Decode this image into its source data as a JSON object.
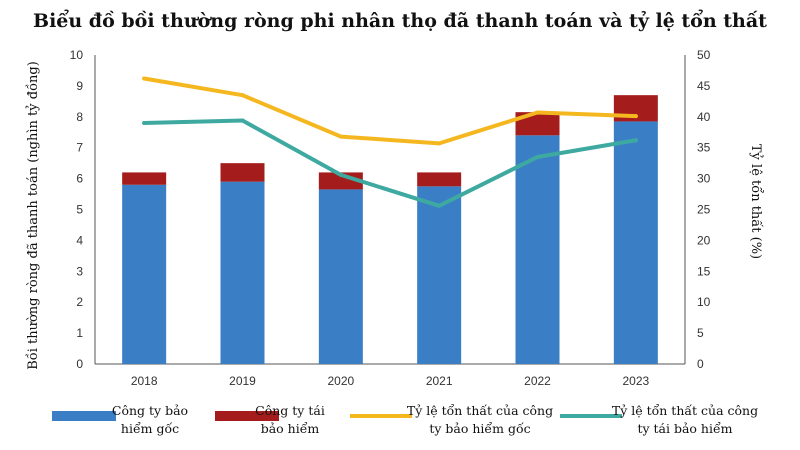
{
  "chart_data": {
    "type": "bar",
    "title": "Biểu đồ bồi thường ròng phi nhân thọ đã thanh toán và tỷ lệ tổn thất",
    "ylabel": "Bồi thường ròng đã thanh toán (nghìn tỷ đồng)",
    "y2label": "Tỷ lệ tổn thất (%)",
    "categories": [
      "2018",
      "2019",
      "2020",
      "2021",
      "2022",
      "2023"
    ],
    "ylim": [
      0,
      10
    ],
    "y2lim": [
      0,
      50
    ],
    "yticks": [
      "0",
      "1",
      "2",
      "3",
      "4",
      "5",
      "6",
      "7",
      "8",
      "9",
      "10"
    ],
    "y2ticks": [
      "0",
      "5",
      "10",
      "15",
      "20",
      "25",
      "30",
      "35",
      "40",
      "45",
      "50"
    ],
    "grid": false,
    "legend_position": "bottom",
    "bar_series": [
      {
        "name": "Công ty bảo hiểm gốc",
        "color": "#3a7ec6",
        "values": [
          5.8,
          5.9,
          5.65,
          5.75,
          7.4,
          7.85
        ]
      },
      {
        "name": "Công ty tái bảo hiểm",
        "color": "#a51c1c",
        "values": [
          0.4,
          0.6,
          0.55,
          0.45,
          0.75,
          0.85
        ]
      }
    ],
    "line_series": [
      {
        "name": "Tỷ lệ tổn thất của công ty bảo hiểm gốc",
        "color": "#f5b71f",
        "axis": "right",
        "values": [
          46.2,
          43.5,
          36.8,
          35.7,
          40.7,
          40.1
        ]
      },
      {
        "name": "Tỷ lệ tổn thất của công ty tái bảo hiểm",
        "color": "#3ea9a0",
        "axis": "right",
        "values": [
          39.0,
          39.4,
          30.6,
          25.6,
          33.5,
          36.2
        ]
      }
    ],
    "legend": [
      {
        "lines": [
          "Công ty bảo",
          "hiểm gốc"
        ],
        "kind": "bar",
        "color": "#3a7ec6"
      },
      {
        "lines": [
          "Công ty tái",
          "bảo hiểm"
        ],
        "kind": "bar",
        "color": "#a51c1c"
      },
      {
        "lines": [
          "Tỷ lệ tổn thất của công",
          "ty bảo hiểm gốc"
        ],
        "kind": "line",
        "color": "#f5b71f"
      },
      {
        "lines": [
          "Tỷ lệ tổn thất của công",
          "ty tái bảo hiểm"
        ],
        "kind": "line",
        "color": "#3ea9a0"
      }
    ]
  }
}
